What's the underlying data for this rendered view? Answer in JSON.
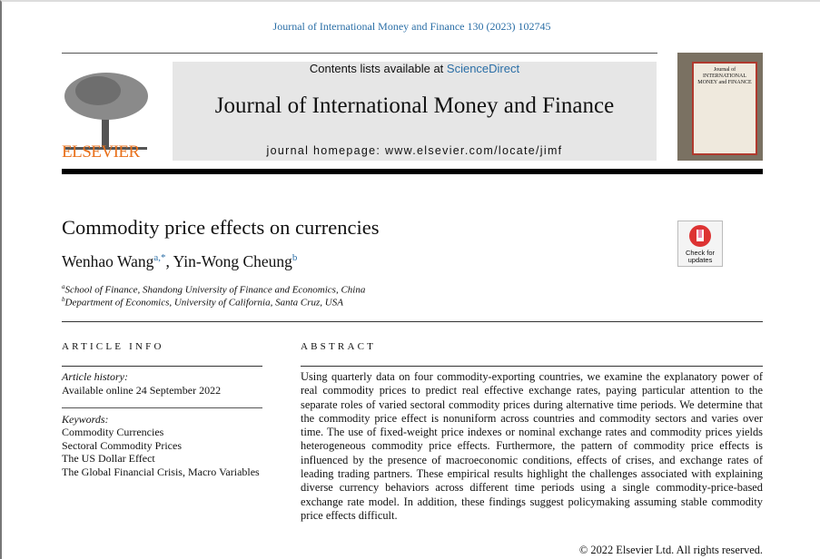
{
  "header": {
    "citation": "Journal of International Money and Finance 130 (2023) 102745",
    "contents_prefix": "Contents lists available at ",
    "contents_link": "ScienceDirect",
    "journal_title": "Journal of International Money and Finance",
    "homepage": "journal homepage: www.elsevier.com/locate/jimf",
    "publisher": "ELSEVIER",
    "cover_text": "Journal of INTERNATIONAL MONEY and FINANCE"
  },
  "colors": {
    "link": "#2a6ea6",
    "publisher": "#e9711c"
  },
  "article": {
    "title": "Commodity price effects on currencies",
    "authors": [
      {
        "name": "Wenhao Wang",
        "sup": "a,*"
      },
      {
        "name": "Yin-Wong Cheung",
        "sup": "b"
      }
    ],
    "author_sep": ", ",
    "affiliations": [
      {
        "mark": "a",
        "text": "School of Finance, Shandong University of Finance and Economics, China"
      },
      {
        "mark": "b",
        "text": "Department of Economics, University of California, Santa Cruz, USA"
      }
    ],
    "badge": {
      "label": "Check for updates"
    }
  },
  "info": {
    "heading": "ARTICLE INFO",
    "history_label": "Article history:",
    "history": "Available online 24 September 2022",
    "keywords_label": "Keywords:",
    "keywords": [
      "Commodity Currencies",
      "Sectoral Commodity Prices",
      "The US Dollar Effect",
      "The Global Financial Crisis, Macro Variables"
    ]
  },
  "abstract": {
    "heading": "ABSTRACT",
    "text": "Using quarterly data on four commodity-exporting countries, we examine the explanatory power of real commodity prices to predict real effective exchange rates, paying particular attention to the separate roles of varied sectoral commodity prices during alternative time periods. We determine that the commodity price effect is nonuniform across countries and commodity sectors and varies over time. The use of fixed-weight price indexes or nominal exchange rates and commodity prices yields heterogeneous commodity price effects. Furthermore, the pattern of commodity price effects is influenced by the presence of macroeconomic conditions, effects of crises, and exchange rates of leading trading partners. These empirical results highlight the challenges associated with explaining diverse currency behaviors across different time periods using a single commodity-price-based exchange rate model. In addition, these findings suggest policymaking assuming stable commodity price effects difficult.",
    "copyright": "© 2022 Elsevier Ltd. All rights reserved."
  }
}
